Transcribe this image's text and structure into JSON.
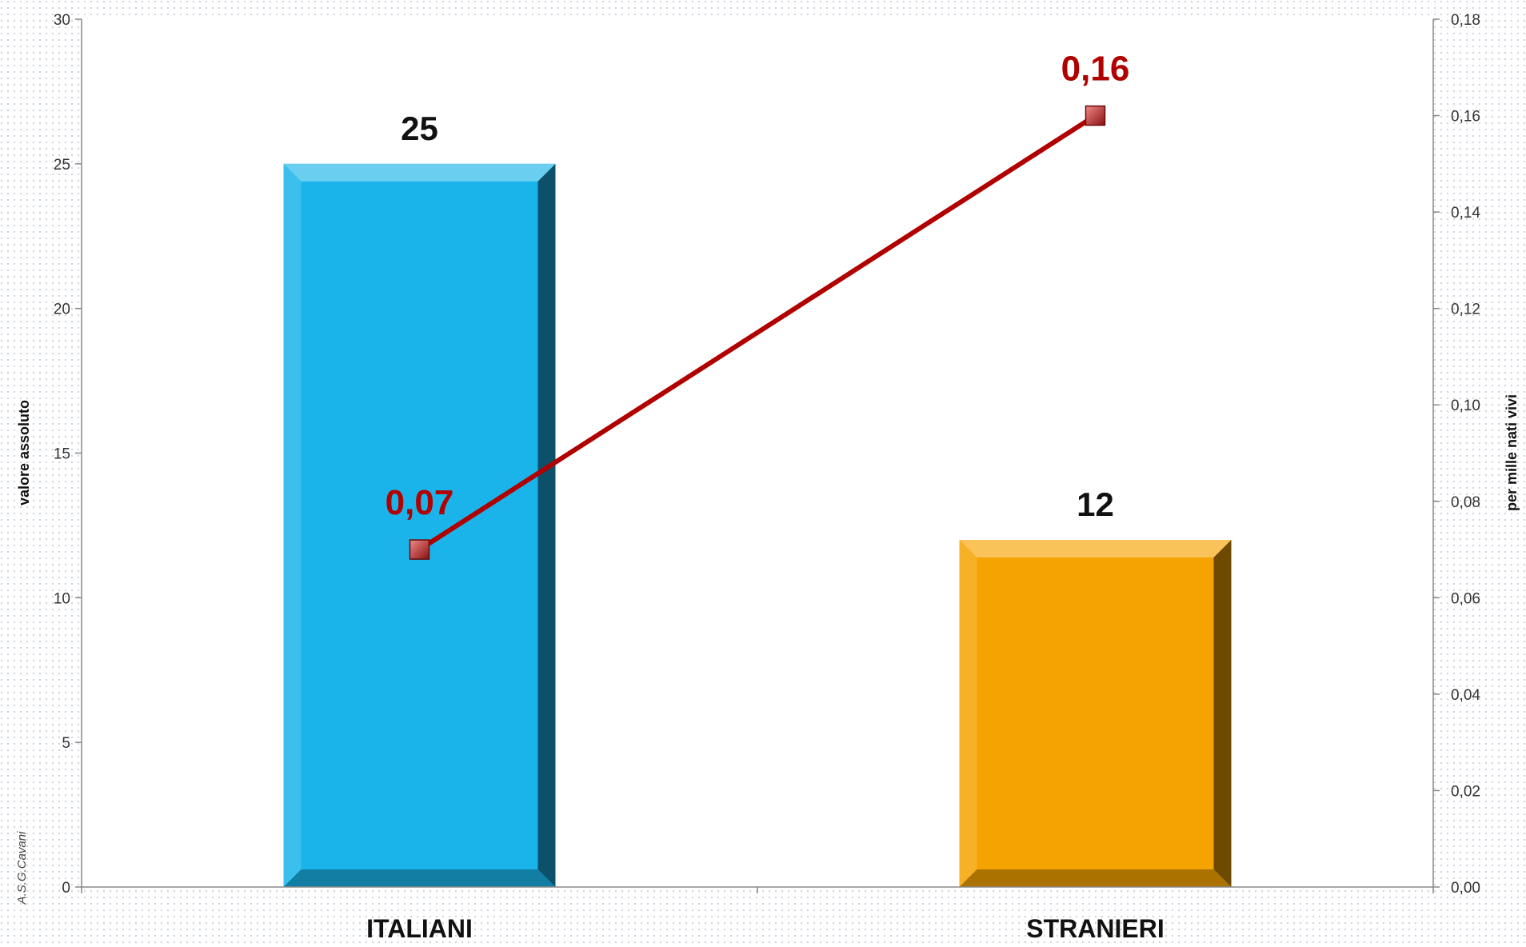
{
  "credit": "A.S.G.Cavani",
  "chart_data": {
    "type": "bar",
    "categories": [
      "ITALIANI",
      "STRANIERI"
    ],
    "series": [
      {
        "values": [
          25,
          12
        ],
        "axis": "left",
        "type": "bar",
        "colors": [
          "#1ab4ea",
          "#f5a300"
        ],
        "labels": [
          "25",
          "12"
        ]
      },
      {
        "values": [
          0.07,
          0.16
        ],
        "axis": "right",
        "type": "line",
        "color": "#b00000",
        "labels": [
          "0,07",
          "0,16"
        ]
      }
    ],
    "ylabel": "valore assoluto",
    "y2label": "per mille nati vivi",
    "ylim": [
      0,
      30
    ],
    "y2lim": [
      0,
      0.18
    ],
    "yticks": [
      "0",
      "5",
      "10",
      "15",
      "20",
      "25",
      "30"
    ],
    "y2ticks": [
      "0,00",
      "0,02",
      "0,04",
      "0,06",
      "0,08",
      "0,10",
      "0,12",
      "0,14",
      "0,16",
      "0,18"
    ],
    "grid": false,
    "legend": "none"
  }
}
